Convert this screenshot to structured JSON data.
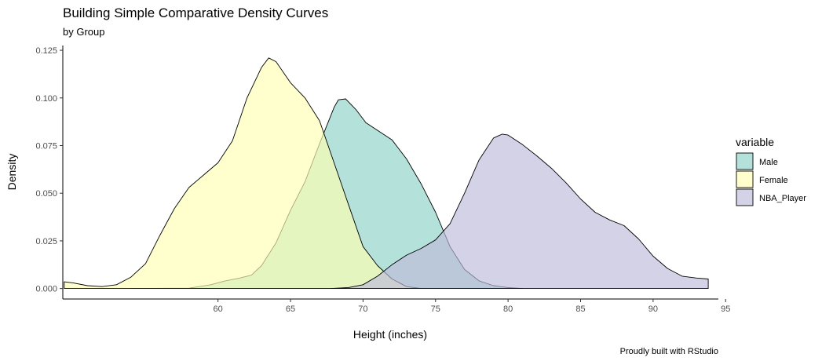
{
  "chart_data": {
    "type": "area",
    "title": "Building Simple Comparative Density Curves",
    "subtitle": "by Group",
    "xlabel": "Height (inches)",
    "ylabel": "Density",
    "caption": "Proudly built with RStudio",
    "legend_title": "variable",
    "legend_position": "right",
    "grid": false,
    "xlim": [
      49.3,
      94.5
    ],
    "ylim": [
      -0.0055,
      0.1275
    ],
    "x_ticks": [
      "60",
      "65",
      "70",
      "75",
      "80",
      "85",
      "90",
      "95"
    ],
    "x_tick_values": [
      60,
      65,
      70,
      75,
      80,
      85,
      90,
      95
    ],
    "y_ticks": [
      "0.000",
      "0.025",
      "0.050",
      "0.075",
      "0.100",
      "0.125"
    ],
    "y_tick_values": [
      0,
      0.025,
      0.05,
      0.075,
      0.1,
      0.125
    ],
    "series": [
      {
        "name": "Male",
        "color": "#8dd3c7",
        "points": [
          [
            54,
            0
          ],
          [
            58,
            0.0002
          ],
          [
            59.5,
            0.002
          ],
          [
            60.5,
            0.004
          ],
          [
            61.5,
            0.0055
          ],
          [
            62.3,
            0.007
          ],
          [
            63,
            0.012
          ],
          [
            64,
            0.024
          ],
          [
            65,
            0.041
          ],
          [
            66,
            0.056
          ],
          [
            67,
            0.076
          ],
          [
            68,
            0.095
          ],
          [
            68.3,
            0.099
          ],
          [
            68.8,
            0.0995
          ],
          [
            69.5,
            0.094
          ],
          [
            70.2,
            0.087
          ],
          [
            71,
            0.083
          ],
          [
            72,
            0.078
          ],
          [
            73,
            0.068
          ],
          [
            74,
            0.055
          ],
          [
            75,
            0.04
          ],
          [
            76,
            0.022
          ],
          [
            77,
            0.01
          ],
          [
            78,
            0.004
          ],
          [
            79,
            0.0015
          ],
          [
            80,
            0.0005
          ],
          [
            81,
            0
          ]
        ]
      },
      {
        "name": "Female",
        "color": "#ffffb3",
        "points": [
          [
            49.4,
            0.0035
          ],
          [
            50,
            0.003
          ],
          [
            51,
            0.0015
          ],
          [
            52,
            0.001
          ],
          [
            53,
            0.002
          ],
          [
            54,
            0.006
          ],
          [
            55,
            0.013
          ],
          [
            56,
            0.028
          ],
          [
            57,
            0.042
          ],
          [
            58,
            0.053
          ],
          [
            59,
            0.0595
          ],
          [
            60,
            0.066
          ],
          [
            61,
            0.0775
          ],
          [
            62,
            0.1
          ],
          [
            63,
            0.116
          ],
          [
            63.5,
            0.121
          ],
          [
            64,
            0.119
          ],
          [
            65,
            0.108
          ],
          [
            66,
            0.1
          ],
          [
            67,
            0.088
          ],
          [
            68,
            0.066
          ],
          [
            69,
            0.044
          ],
          [
            70,
            0.022
          ],
          [
            71,
            0.012
          ],
          [
            72,
            0.005
          ],
          [
            73,
            0.001
          ],
          [
            74,
            0
          ]
        ]
      },
      {
        "name": "NBA_Player",
        "color": "#bebada",
        "points": [
          [
            67.8,
            0
          ],
          [
            69,
            0.0005
          ],
          [
            70,
            0.002
          ],
          [
            71,
            0.0065
          ],
          [
            72,
            0.0125
          ],
          [
            73,
            0.0175
          ],
          [
            74,
            0.021
          ],
          [
            75,
            0.0255
          ],
          [
            76,
            0.034
          ],
          [
            77,
            0.05
          ],
          [
            78,
            0.0675
          ],
          [
            79,
            0.079
          ],
          [
            79.6,
            0.081
          ],
          [
            80,
            0.0805
          ],
          [
            81,
            0.0755
          ],
          [
            82,
            0.0695
          ],
          [
            83,
            0.063
          ],
          [
            84,
            0.0555
          ],
          [
            85,
            0.047
          ],
          [
            86,
            0.04
          ],
          [
            87,
            0.036
          ],
          [
            88,
            0.033
          ],
          [
            89,
            0.026
          ],
          [
            90,
            0.017
          ],
          [
            91,
            0.0105
          ],
          [
            92,
            0.0065
          ],
          [
            93,
            0.0055
          ],
          [
            93.8,
            0.005
          ],
          [
            93.8,
            0
          ]
        ]
      }
    ]
  }
}
